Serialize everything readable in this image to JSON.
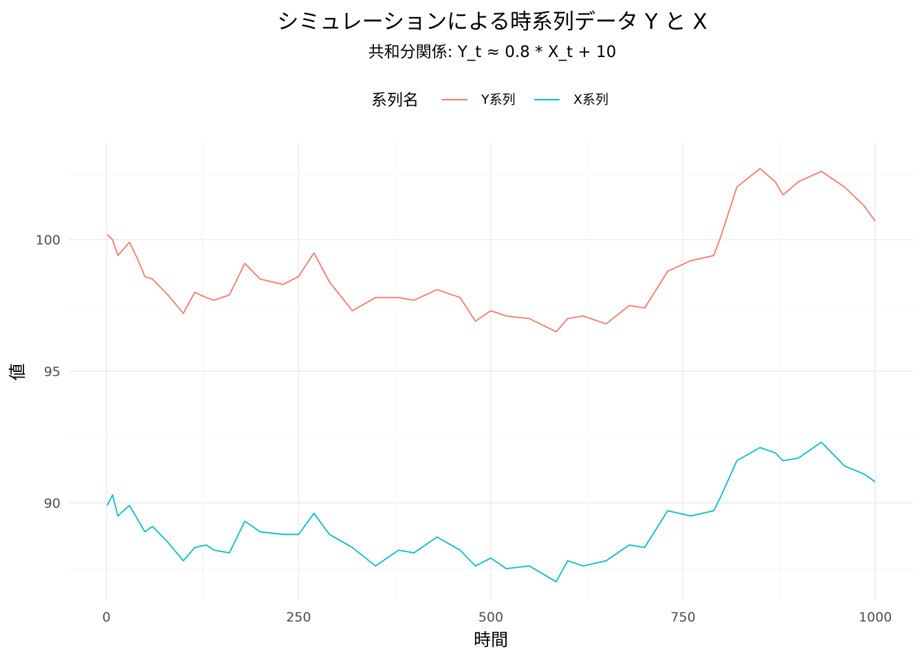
{
  "chart_data": {
    "type": "line",
    "title": "シミュレーションによる時系列データ Y と X",
    "subtitle": "共和分関係: Y_t ≈ 0.8 * X_t + 10",
    "xlabel": "時間",
    "ylabel": "値",
    "legend_title": "系列名",
    "legend_position": "top",
    "xlim": [
      1,
      1000
    ],
    "ylim": [
      86.3,
      103.7
    ],
    "x_ticks": [
      0,
      250,
      500,
      750,
      1000
    ],
    "y_ticks": [
      90,
      95,
      100
    ],
    "grid": true,
    "series": [
      {
        "name": "Y系列",
        "color": "#F8766D",
        "x": [
          1,
          8,
          15,
          30,
          40,
          50,
          60,
          80,
          100,
          115,
          130,
          140,
          160,
          180,
          200,
          230,
          250,
          270,
          290,
          320,
          350,
          380,
          400,
          430,
          460,
          480,
          500,
          520,
          550,
          585,
          600,
          620,
          650,
          680,
          700,
          730,
          760,
          790,
          800,
          820,
          850,
          870,
          880,
          900,
          930,
          960,
          985,
          1000
        ],
        "values": [
          100.2,
          100.0,
          99.4,
          99.9,
          99.3,
          98.6,
          98.5,
          97.9,
          97.2,
          98.0,
          97.8,
          97.7,
          97.9,
          99.1,
          98.5,
          98.3,
          98.6,
          99.5,
          98.4,
          97.3,
          97.8,
          97.8,
          97.7,
          98.1,
          97.8,
          96.9,
          97.3,
          97.1,
          97.0,
          96.5,
          97.0,
          97.1,
          96.8,
          97.5,
          97.4,
          98.8,
          99.2,
          99.4,
          100.2,
          102.0,
          102.7,
          102.2,
          101.7,
          102.2,
          102.6,
          102.0,
          101.3,
          100.7
        ]
      },
      {
        "name": "X系列",
        "color": "#00BFC4",
        "x": [
          1,
          8,
          15,
          30,
          40,
          50,
          60,
          80,
          100,
          115,
          130,
          140,
          160,
          180,
          200,
          230,
          250,
          270,
          290,
          320,
          350,
          380,
          400,
          430,
          460,
          480,
          500,
          520,
          550,
          585,
          600,
          620,
          650,
          680,
          700,
          730,
          760,
          790,
          800,
          820,
          850,
          870,
          880,
          900,
          930,
          960,
          985,
          1000
        ],
        "values": [
          89.9,
          90.3,
          89.5,
          89.9,
          89.4,
          88.9,
          89.1,
          88.5,
          87.8,
          88.3,
          88.4,
          88.2,
          88.1,
          89.3,
          88.9,
          88.8,
          88.8,
          89.6,
          88.8,
          88.3,
          87.6,
          88.2,
          88.1,
          88.7,
          88.2,
          87.6,
          87.9,
          87.5,
          87.6,
          87.0,
          87.8,
          87.6,
          87.8,
          88.4,
          88.3,
          89.7,
          89.5,
          89.7,
          90.3,
          91.6,
          92.1,
          91.9,
          91.6,
          91.7,
          92.3,
          91.4,
          91.1,
          90.8
        ]
      }
    ]
  }
}
